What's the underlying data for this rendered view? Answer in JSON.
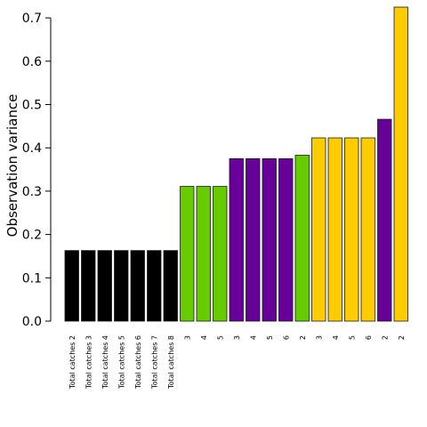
{
  "chart_data": {
    "type": "bar",
    "title": "",
    "xlabel": "",
    "ylabel": "Observation variance",
    "ylim": [
      0,
      0.7
    ],
    "yticks": [
      "0.0",
      "0.1",
      "0.2",
      "0.3",
      "0.4",
      "0.5",
      "0.6",
      "0.7"
    ],
    "grid": false,
    "legend": "none",
    "categories": [
      "Total catches 2",
      "Total catches 3",
      "Total catches 4",
      "Total catches 5",
      "Total catches 6",
      "Total catches 7",
      "Total catches 8",
      "3",
      "4",
      "5",
      "3",
      "4",
      "5",
      "6",
      "2",
      "3",
      "4",
      "5",
      "6",
      "2",
      "2"
    ],
    "values": [
      0.163,
      0.163,
      0.163,
      0.163,
      0.163,
      0.163,
      0.163,
      0.311,
      0.311,
      0.311,
      0.375,
      0.375,
      0.375,
      0.375,
      0.383,
      0.423,
      0.423,
      0.423,
      0.423,
      0.466,
      0.727
    ],
    "colors": [
      "#000000",
      "#000000",
      "#000000",
      "#000000",
      "#000000",
      "#000000",
      "#000000",
      "#66cc00",
      "#66cc00",
      "#66cc00",
      "#660099",
      "#660099",
      "#660099",
      "#660099",
      "#66cc00",
      "#ffcc00",
      "#ffcc00",
      "#ffcc00",
      "#ffcc00",
      "#660099",
      "#ffcc00"
    ]
  }
}
